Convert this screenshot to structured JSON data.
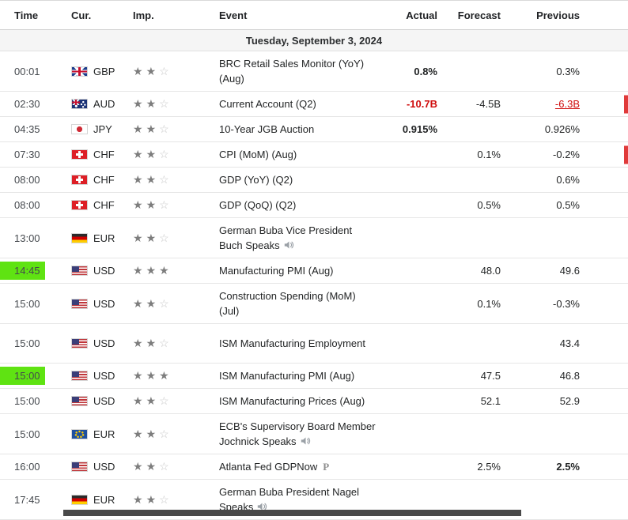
{
  "header": {
    "columns": [
      "Time",
      "Cur.",
      "Imp.",
      "Event",
      "Actual",
      "Forecast",
      "Previous"
    ]
  },
  "date_row": "Tuesday, September 3, 2024",
  "importance_max_stars": 3,
  "rows": [
    {
      "time": "00:01",
      "flag": "gb",
      "currency": "GBP",
      "stars": 2,
      "event": "BRC Retail Sales Monitor (YoY) (Aug)",
      "actual": "0.8%",
      "actualClass": "bold",
      "forecast": "",
      "previous": "0.3%",
      "previousClass": ""
    },
    {
      "time": "02:30",
      "flag": "au",
      "currency": "AUD",
      "stars": 2,
      "event": "Current Account (Q2)",
      "actual": "-10.7B",
      "actualClass": "bold red",
      "forecast": "-4.5B",
      "previous": "-6.3B",
      "previousClass": "red underline",
      "edgeMarker": true
    },
    {
      "time": "04:35",
      "flag": "jp",
      "currency": "JPY",
      "stars": 2,
      "event": "10-Year JGB Auction",
      "actual": "0.915%",
      "actualClass": "bold",
      "forecast": "",
      "previous": "0.926%",
      "previousClass": ""
    },
    {
      "time": "07:30",
      "flag": "ch",
      "currency": "CHF",
      "stars": 2,
      "event": "CPI (MoM) (Aug)",
      "actual": "",
      "forecast": "0.1%",
      "previous": "-0.2%",
      "previousClass": "",
      "edgeMarker": true
    },
    {
      "time": "08:00",
      "flag": "ch",
      "currency": "CHF",
      "stars": 2,
      "event": "GDP (YoY) (Q2)",
      "actual": "",
      "forecast": "",
      "previous": "0.6%",
      "previousClass": ""
    },
    {
      "time": "08:00",
      "flag": "ch",
      "currency": "CHF",
      "stars": 2,
      "event": "GDP (QoQ) (Q2)",
      "actual": "",
      "forecast": "0.5%",
      "previous": "0.5%",
      "previousClass": ""
    },
    {
      "time": "13:00",
      "flag": "de",
      "currency": "EUR",
      "stars": 2,
      "event": "German Buba Vice President Buch Speaks",
      "speaker": true,
      "actual": "",
      "forecast": "",
      "previous": ""
    },
    {
      "time": "14:45",
      "timeHighlight": true,
      "flag": "us",
      "currency": "USD",
      "stars": 3,
      "event": "Manufacturing PMI (Aug)",
      "actual": "",
      "forecast": "48.0",
      "previous": "49.6",
      "previousClass": ""
    },
    {
      "time": "15:00",
      "flag": "us",
      "currency": "USD",
      "stars": 2,
      "event": "Construction Spending (MoM) (Jul)",
      "actual": "",
      "forecast": "0.1%",
      "previous": "-0.3%",
      "previousClass": ""
    },
    {
      "time": "15:00",
      "flag": "us",
      "currency": "USD",
      "stars": 2,
      "event": "ISM Manufacturing Employment",
      "actual": "",
      "forecast": "",
      "previous": "43.4",
      "previousClass": "",
      "tall": true
    },
    {
      "time": "15:00",
      "timeHighlight": true,
      "flag": "us",
      "currency": "USD",
      "stars": 3,
      "event": "ISM Manufacturing PMI (Aug)",
      "actual": "",
      "forecast": "47.5",
      "previous": "46.8",
      "previousClass": ""
    },
    {
      "time": "15:00",
      "flag": "us",
      "currency": "USD",
      "stars": 2,
      "event": "ISM Manufacturing Prices (Aug)",
      "actual": "",
      "forecast": "52.1",
      "previous": "52.9",
      "previousClass": ""
    },
    {
      "time": "15:00",
      "flag": "eu",
      "currency": "EUR",
      "stars": 2,
      "event": "ECB's Supervisory Board Member Jochnick Speaks",
      "speaker": true,
      "actual": "",
      "forecast": "",
      "previous": ""
    },
    {
      "time": "16:00",
      "flag": "us",
      "currency": "USD",
      "stars": 2,
      "event": "Atlanta Fed GDPNow",
      "badge": "P",
      "actual": "",
      "forecast": "2.5%",
      "previous": "2.5%",
      "previousClass": "bold"
    },
    {
      "time": "17:45",
      "flag": "de",
      "currency": "EUR",
      "stars": 2,
      "event": "German Buba President Nagel Speaks",
      "speaker": true,
      "actual": "",
      "forecast": "",
      "previous": ""
    }
  ],
  "icons": {
    "star_filled": "★",
    "star_empty": "☆",
    "speaker": "speaker-icon",
    "report_badge": "P"
  },
  "colors": {
    "highlight-green": "#5fe312",
    "negative-red": "#cf0a0a",
    "date-row-bg": "#f5f5f5",
    "row-border": "#e6e6e6",
    "star-filled": "#7d7d7d",
    "star-empty": "#c8c8c8",
    "edge-marker-red": "#e03a3a",
    "bottom-bar": "#4a4a4a"
  }
}
